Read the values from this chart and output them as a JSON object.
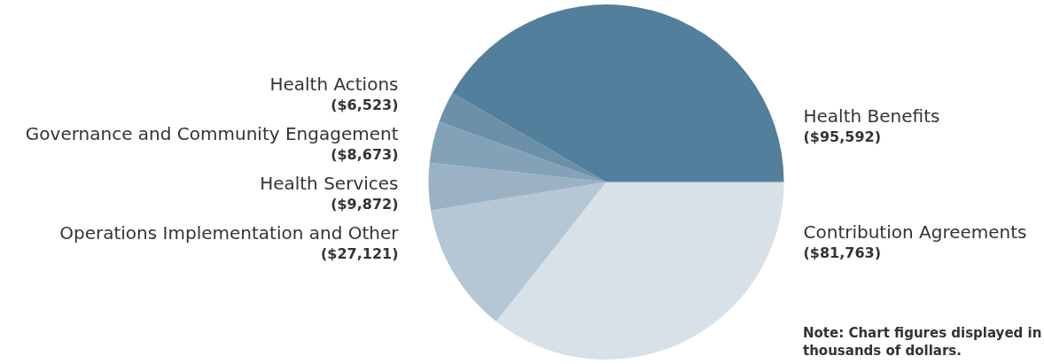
{
  "chart_data": {
    "type": "pie",
    "categories": [
      "Contribution Agreements",
      "Operations Implementation and Other",
      "Health Services",
      "Governance and Community Engagement",
      "Health Actions",
      "Health Benefits"
    ],
    "values": [
      81763,
      27121,
      9872,
      8673,
      6523,
      95592
    ],
    "value_labels": [
      "($81,763)",
      "($27,121)",
      "($9,872)",
      "($8,673)",
      "($6,523)",
      "($95,592)"
    ],
    "colors": [
      "#d8e0e8",
      "#b5c6d4",
      "#9bb2c5",
      "#84a2b7",
      "#6b90a8",
      "#527f9b"
    ],
    "annotations": [
      "Note: Chart figures displayed in thousands of dollars."
    ]
  }
}
